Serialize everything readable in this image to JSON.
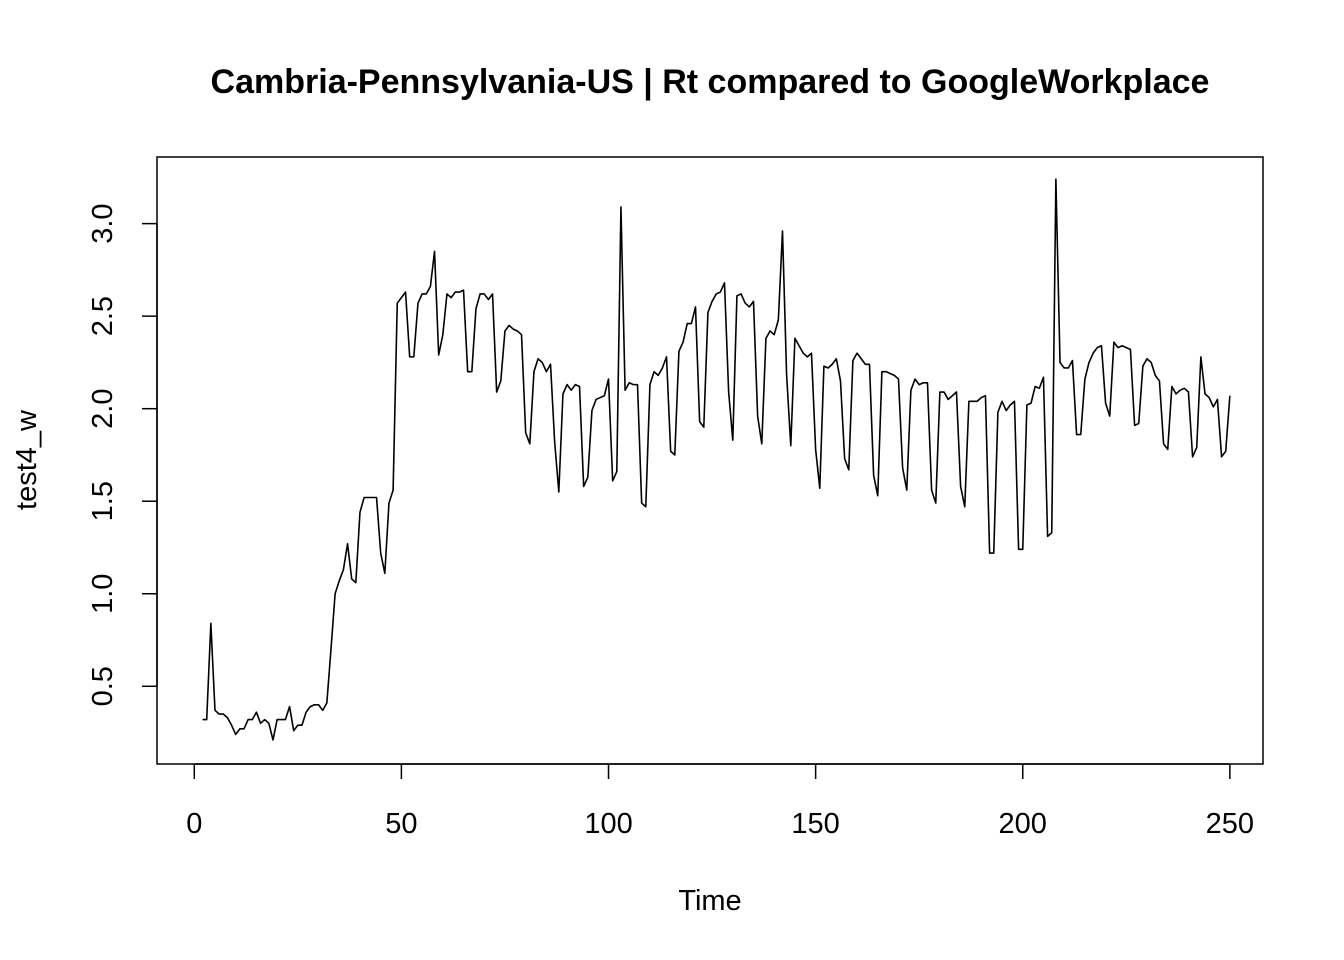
{
  "chart_data": {
    "type": "line",
    "title": "Cambria-Pennsylvania-US | Rt compared to GoogleWorkplace",
    "xlabel": "Time",
    "ylabel": "test4_w",
    "xlim": [
      -9,
      258
    ],
    "ylim": [
      0.08,
      3.36
    ],
    "x_ticks": [
      0,
      50,
      100,
      150,
      200,
      250
    ],
    "y_ticks": [
      0.5,
      1.0,
      1.5,
      2.0,
      2.5,
      3.0
    ],
    "x_tick_labels": [
      "0",
      "50",
      "100",
      "150",
      "200",
      "250"
    ],
    "y_tick_labels": [
      "0.5",
      "1.0",
      "1.5",
      "2.0",
      "2.5",
      "3.0"
    ],
    "grid": false,
    "legend": "none",
    "line_color": "#000000",
    "series": [
      {
        "x_start": 2,
        "x_step": 1,
        "values": [
          0.32,
          0.32,
          0.84,
          0.37,
          0.35,
          0.35,
          0.33,
          0.29,
          0.24,
          0.27,
          0.27,
          0.32,
          0.32,
          0.36,
          0.3,
          0.32,
          0.3,
          0.21,
          0.32,
          0.32,
          0.32,
          0.39,
          0.26,
          0.29,
          0.29,
          0.36,
          0.39,
          0.4,
          0.4,
          0.37,
          0.41,
          0.7,
          1.0,
          1.07,
          1.13,
          1.27,
          1.08,
          1.06,
          1.44,
          1.52,
          1.52,
          1.52,
          1.52,
          1.22,
          1.11,
          1.49,
          1.56,
          2.57,
          2.6,
          2.63,
          2.28,
          2.28,
          2.57,
          2.62,
          2.62,
          2.66,
          2.85,
          2.29,
          2.4,
          2.62,
          2.6,
          2.63,
          2.63,
          2.64,
          2.2,
          2.2,
          2.54,
          2.62,
          2.62,
          2.59,
          2.62,
          2.09,
          2.15,
          2.42,
          2.45,
          2.43,
          2.42,
          2.4,
          1.87,
          1.81,
          2.2,
          2.27,
          2.25,
          2.2,
          2.24,
          1.82,
          1.55,
          2.08,
          2.13,
          2.1,
          2.13,
          2.12,
          1.58,
          1.63,
          1.99,
          2.05,
          2.06,
          2.07,
          2.16,
          1.61,
          1.66,
          3.09,
          2.1,
          2.14,
          2.13,
          2.13,
          1.49,
          1.47,
          2.13,
          2.2,
          2.18,
          2.22,
          2.28,
          1.77,
          1.75,
          2.31,
          2.36,
          2.46,
          2.46,
          2.55,
          1.93,
          1.9,
          2.52,
          2.58,
          2.62,
          2.63,
          2.68,
          2.09,
          1.83,
          2.61,
          2.62,
          2.57,
          2.55,
          2.58,
          1.96,
          1.81,
          2.38,
          2.42,
          2.4,
          2.48,
          2.96,
          2.18,
          1.8,
          2.38,
          2.34,
          2.3,
          2.28,
          2.3,
          1.78,
          1.57,
          2.23,
          2.22,
          2.24,
          2.27,
          2.15,
          1.73,
          1.67,
          2.26,
          2.3,
          2.27,
          2.24,
          2.24,
          1.64,
          1.53,
          2.2,
          2.2,
          2.19,
          2.18,
          2.16,
          1.68,
          1.56,
          2.1,
          2.16,
          2.13,
          2.14,
          2.14,
          1.56,
          1.49,
          2.09,
          2.09,
          2.05,
          2.07,
          2.09,
          1.58,
          1.47,
          2.04,
          2.04,
          2.04,
          2.06,
          2.07,
          1.22,
          1.22,
          1.98,
          2.04,
          1.99,
          2.02,
          2.04,
          1.24,
          1.24,
          2.02,
          2.03,
          2.12,
          2.11,
          2.17,
          1.31,
          1.33,
          3.24,
          2.25,
          2.22,
          2.22,
          2.26,
          1.86,
          1.86,
          2.16,
          2.25,
          2.3,
          2.33,
          2.34,
          2.03,
          1.96,
          2.36,
          2.33,
          2.34,
          2.33,
          2.32,
          1.91,
          1.92,
          2.23,
          2.27,
          2.25,
          2.18,
          2.15,
          1.81,
          1.78,
          2.12,
          2.08,
          2.1,
          2.11,
          2.09,
          1.74,
          1.79,
          2.28,
          2.08,
          2.06,
          2.01,
          2.05,
          1.74,
          1.77,
          2.07
        ]
      }
    ]
  }
}
